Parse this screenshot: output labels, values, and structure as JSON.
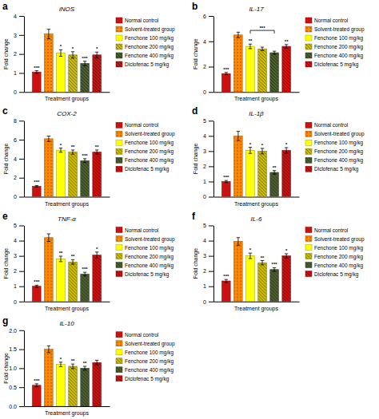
{
  "chart_data": [
    {
      "type": "bar",
      "label": "a",
      "title": "iNOS",
      "xlabel": "Treatment groups",
      "ylabel": "Fold change",
      "categories": [
        null
      ],
      "tick_labels": "y",
      "ylim": [
        0,
        4
      ],
      "yticks": [
        0,
        1,
        2,
        3,
        4
      ],
      "series": [
        {
          "name": "Normal control",
          "color": "#cc1111",
          "values": [
            1.05
          ],
          "errors": [
            0.07
          ],
          "annotations": [
            "***"
          ]
        },
        {
          "name": "Solvent-treated group",
          "color": "#ff8800",
          "values": [
            3.05
          ],
          "errors": [
            0.25
          ],
          "annotations": [
            null
          ]
        },
        {
          "name": "Fenchone 100 mg/kg",
          "color": "#ffff00",
          "values": [
            2.05
          ],
          "errors": [
            0.17
          ],
          "annotations": [
            "*"
          ]
        },
        {
          "name": "Fenchone 200 mg/kg",
          "color": "#ccbb00",
          "values": [
            1.95
          ],
          "errors": [
            0.17
          ],
          "annotations": [
            "*"
          ]
        },
        {
          "name": "Fenchone 400 mg/kg",
          "color": "#4a5e30",
          "values": [
            1.5
          ],
          "errors": [
            0.12
          ],
          "annotations": [
            "***"
          ]
        },
        {
          "name": "Diclofenac 5 mg/kg",
          "color": "#cc1111",
          "values": [
            1.95
          ],
          "errors": [
            0.15
          ],
          "annotations": [
            "*"
          ]
        }
      ]
    },
    {
      "type": "bar",
      "label": "b",
      "title": "IL-17",
      "xlabel": "Treatment groups",
      "ylabel": "Fold change",
      "categories": [
        null
      ],
      "tick_labels": "y",
      "ylim": [
        0,
        6
      ],
      "yticks": [
        0,
        2,
        4,
        6
      ],
      "annotations": [
        {
          "text": "***",
          "from": 2,
          "to": 4
        }
      ],
      "series": [
        {
          "name": "Normal control",
          "color": "#cc1111",
          "values": [
            1.45
          ],
          "errors": [
            0.09
          ],
          "annotations": [
            "***"
          ]
        },
        {
          "name": "Solvent-treated group",
          "color": "#ff8800",
          "values": [
            4.5
          ],
          "errors": [
            0.22
          ],
          "annotations": [
            null
          ]
        },
        {
          "name": "Fenchone 100 mg/kg",
          "color": "#ffff00",
          "values": [
            3.6
          ],
          "errors": [
            0.18
          ],
          "annotations": [
            "**"
          ]
        },
        {
          "name": "Fenchone 200 mg/kg",
          "color": "#ccbb00",
          "values": [
            3.4
          ],
          "errors": [
            0.14
          ],
          "annotations": [
            null
          ]
        },
        {
          "name": "Fenchone 400 mg/kg",
          "color": "#4a5e30",
          "values": [
            3.1
          ],
          "errors": [
            0.12
          ],
          "annotations": [
            null
          ]
        },
        {
          "name": "Diclofenac 5 mg/kg",
          "color": "#cc1111",
          "values": [
            3.6
          ],
          "errors": [
            0.14
          ],
          "annotations": [
            "**"
          ]
        }
      ]
    },
    {
      "type": "bar",
      "label": "c",
      "title": "COX-2",
      "xlabel": "Treatment groups",
      "ylabel": "Fold change",
      "categories": [
        null
      ],
      "tick_labels": "y",
      "ylim": [
        0,
        8
      ],
      "yticks": [
        0,
        2,
        4,
        6,
        8
      ],
      "series": [
        {
          "name": "Normal control",
          "color": "#cc1111",
          "values": [
            1.1
          ],
          "errors": [
            0.08
          ],
          "annotations": [
            "***"
          ]
        },
        {
          "name": "Solvent-treated group",
          "color": "#ff8800",
          "values": [
            6.1
          ],
          "errors": [
            0.28
          ],
          "annotations": [
            null
          ]
        },
        {
          "name": "Fenchone 100 mg/kg",
          "color": "#ffff00",
          "values": [
            4.9
          ],
          "errors": [
            0.22
          ],
          "annotations": [
            "*"
          ]
        },
        {
          "name": "Fenchone 200 mg/kg",
          "color": "#ccbb00",
          "values": [
            4.7
          ],
          "errors": [
            0.22
          ],
          "annotations": [
            "**"
          ]
        },
        {
          "name": "Fenchone 400 mg/kg",
          "color": "#4a5e30",
          "values": [
            3.8
          ],
          "errors": [
            0.2
          ],
          "annotations": [
            "***"
          ]
        },
        {
          "name": "Diclofenac 5 mg/kg",
          "color": "#cc1111",
          "values": [
            4.7
          ],
          "errors": [
            0.22
          ],
          "annotations": [
            "**"
          ]
        }
      ]
    },
    {
      "type": "bar",
      "label": "d",
      "title": "IL-1β",
      "xlabel": "Treatment groups",
      "ylabel": "Fold change",
      "categories": [
        null
      ],
      "tick_labels": "y",
      "ylim": [
        0,
        5
      ],
      "yticks": [
        0,
        1,
        2,
        3,
        4,
        5
      ],
      "series": [
        {
          "name": "Normal control",
          "color": "#cc1111",
          "values": [
            1.0
          ],
          "errors": [
            0.07
          ],
          "annotations": [
            "***"
          ]
        },
        {
          "name": "Solvent-treated group",
          "color": "#ff8800",
          "values": [
            4.0
          ],
          "errors": [
            0.3
          ],
          "annotations": [
            null
          ]
        },
        {
          "name": "Fenchone 100 mg/kg",
          "color": "#ffff00",
          "values": [
            3.05
          ],
          "errors": [
            0.2
          ],
          "annotations": [
            "*"
          ]
        },
        {
          "name": "Fenchone 200 mg/kg",
          "color": "#ccbb00",
          "values": [
            3.0
          ],
          "errors": [
            0.18
          ],
          "annotations": [
            "*"
          ]
        },
        {
          "name": "Fenchone 400 mg/kg",
          "color": "#4a5e30",
          "values": [
            1.6
          ],
          "errors": [
            0.12
          ],
          "annotations": [
            "**"
          ]
        },
        {
          "name": "Diclofenac 5 mg/kg",
          "color": "#cc1111",
          "values": [
            3.05
          ],
          "errors": [
            0.18
          ],
          "annotations": [
            "*"
          ]
        }
      ]
    },
    {
      "type": "bar",
      "label": "e",
      "title": "TNF-α",
      "xlabel": "Treatment groups",
      "ylabel": "Fold change",
      "categories": [
        null
      ],
      "tick_labels": "y",
      "ylim": [
        0,
        5
      ],
      "yticks": [
        0,
        1,
        2,
        3,
        4,
        5
      ],
      "series": [
        {
          "name": "Normal control",
          "color": "#cc1111",
          "values": [
            1.0
          ],
          "errors": [
            0.07
          ],
          "annotations": [
            "***"
          ]
        },
        {
          "name": "Solvent-treated group",
          "color": "#ff8800",
          "values": [
            4.2
          ],
          "errors": [
            0.25
          ],
          "annotations": [
            null
          ]
        },
        {
          "name": "Fenchone 100 mg/kg",
          "color": "#ffff00",
          "values": [
            2.8
          ],
          "errors": [
            0.18
          ],
          "annotations": [
            "**"
          ]
        },
        {
          "name": "Fenchone 200 mg/kg",
          "color": "#ccbb00",
          "values": [
            2.6
          ],
          "errors": [
            0.15
          ],
          "annotations": [
            "**"
          ]
        },
        {
          "name": "Fenchone 400 mg/kg",
          "color": "#4a5e30",
          "values": [
            1.8
          ],
          "errors": [
            0.12
          ],
          "annotations": [
            "***"
          ]
        },
        {
          "name": "Diclofenac 5 mg/kg",
          "color": "#cc1111",
          "values": [
            3.05
          ],
          "errors": [
            0.2
          ],
          "annotations": [
            "*"
          ]
        }
      ]
    },
    {
      "type": "bar",
      "label": "f",
      "title": "IL-6",
      "xlabel": "Treatment groups",
      "ylabel": "Fold change",
      "categories": [
        null
      ],
      "tick_labels": "y",
      "ylim": [
        0,
        5
      ],
      "yticks": [
        0,
        1,
        2,
        3,
        4,
        5
      ],
      "series": [
        {
          "name": "Normal control",
          "color": "#cc1111",
          "values": [
            1.35
          ],
          "errors": [
            0.1
          ],
          "annotations": [
            "***"
          ]
        },
        {
          "name": "Solvent-treated group",
          "color": "#ff8800",
          "values": [
            3.95
          ],
          "errors": [
            0.25
          ],
          "annotations": [
            null
          ]
        },
        {
          "name": "Fenchone 100 mg/kg",
          "color": "#ffff00",
          "values": [
            3.0
          ],
          "errors": [
            0.18
          ],
          "annotations": [
            "*"
          ]
        },
        {
          "name": "Fenchone 200 mg/kg",
          "color": "#ccbb00",
          "values": [
            2.55
          ],
          "errors": [
            0.14
          ],
          "annotations": [
            "**"
          ]
        },
        {
          "name": "Fenchone 400 mg/kg",
          "color": "#4a5e30",
          "values": [
            2.1
          ],
          "errors": [
            0.12
          ],
          "annotations": [
            "***"
          ]
        },
        {
          "name": "Diclofenac 5 mg/kg",
          "color": "#cc1111",
          "values": [
            3.0
          ],
          "errors": [
            0.14
          ],
          "annotations": [
            "*"
          ]
        }
      ]
    },
    {
      "type": "bar",
      "label": "g",
      "title": "IL-10",
      "xlabel": "Treatment groups",
      "ylabel": "Fold change",
      "categories": [
        null
      ],
      "tick_labels": "y",
      "ylim": [
        0,
        2
      ],
      "yticks": [
        {
          "value": 0,
          "label": "0.0"
        },
        0.5,
        {
          "value": 1,
          "label": "1.0"
        },
        1.5,
        {
          "value": 2,
          "label": "2.0"
        }
      ],
      "series": [
        {
          "name": "Normal control",
          "color": "#cc1111",
          "values": [
            0.55
          ],
          "errors": [
            0.04
          ],
          "annotations": [
            "***"
          ]
        },
        {
          "name": "Solvent-treated group",
          "color": "#ff8800",
          "values": [
            1.5
          ],
          "errors": [
            0.09
          ],
          "annotations": [
            null
          ]
        },
        {
          "name": "Fenchone 100 mg/kg",
          "color": "#ffff00",
          "values": [
            1.1
          ],
          "errors": [
            0.06
          ],
          "annotations": [
            "*"
          ]
        },
        {
          "name": "Fenchone 200 mg/kg",
          "color": "#ccbb00",
          "values": [
            1.05
          ],
          "errors": [
            0.06
          ],
          "annotations": [
            "**"
          ]
        },
        {
          "name": "Fenchone 400 mg/kg",
          "color": "#4a5e30",
          "values": [
            1.0
          ],
          "errors": [
            0.05
          ],
          "annotations": [
            "**"
          ]
        },
        {
          "name": "Diclofenac 5 mg/kg",
          "color": "#cc1111",
          "values": [
            1.15
          ],
          "errors": [
            0.06
          ],
          "annotations": [
            null
          ]
        }
      ]
    }
  ]
}
